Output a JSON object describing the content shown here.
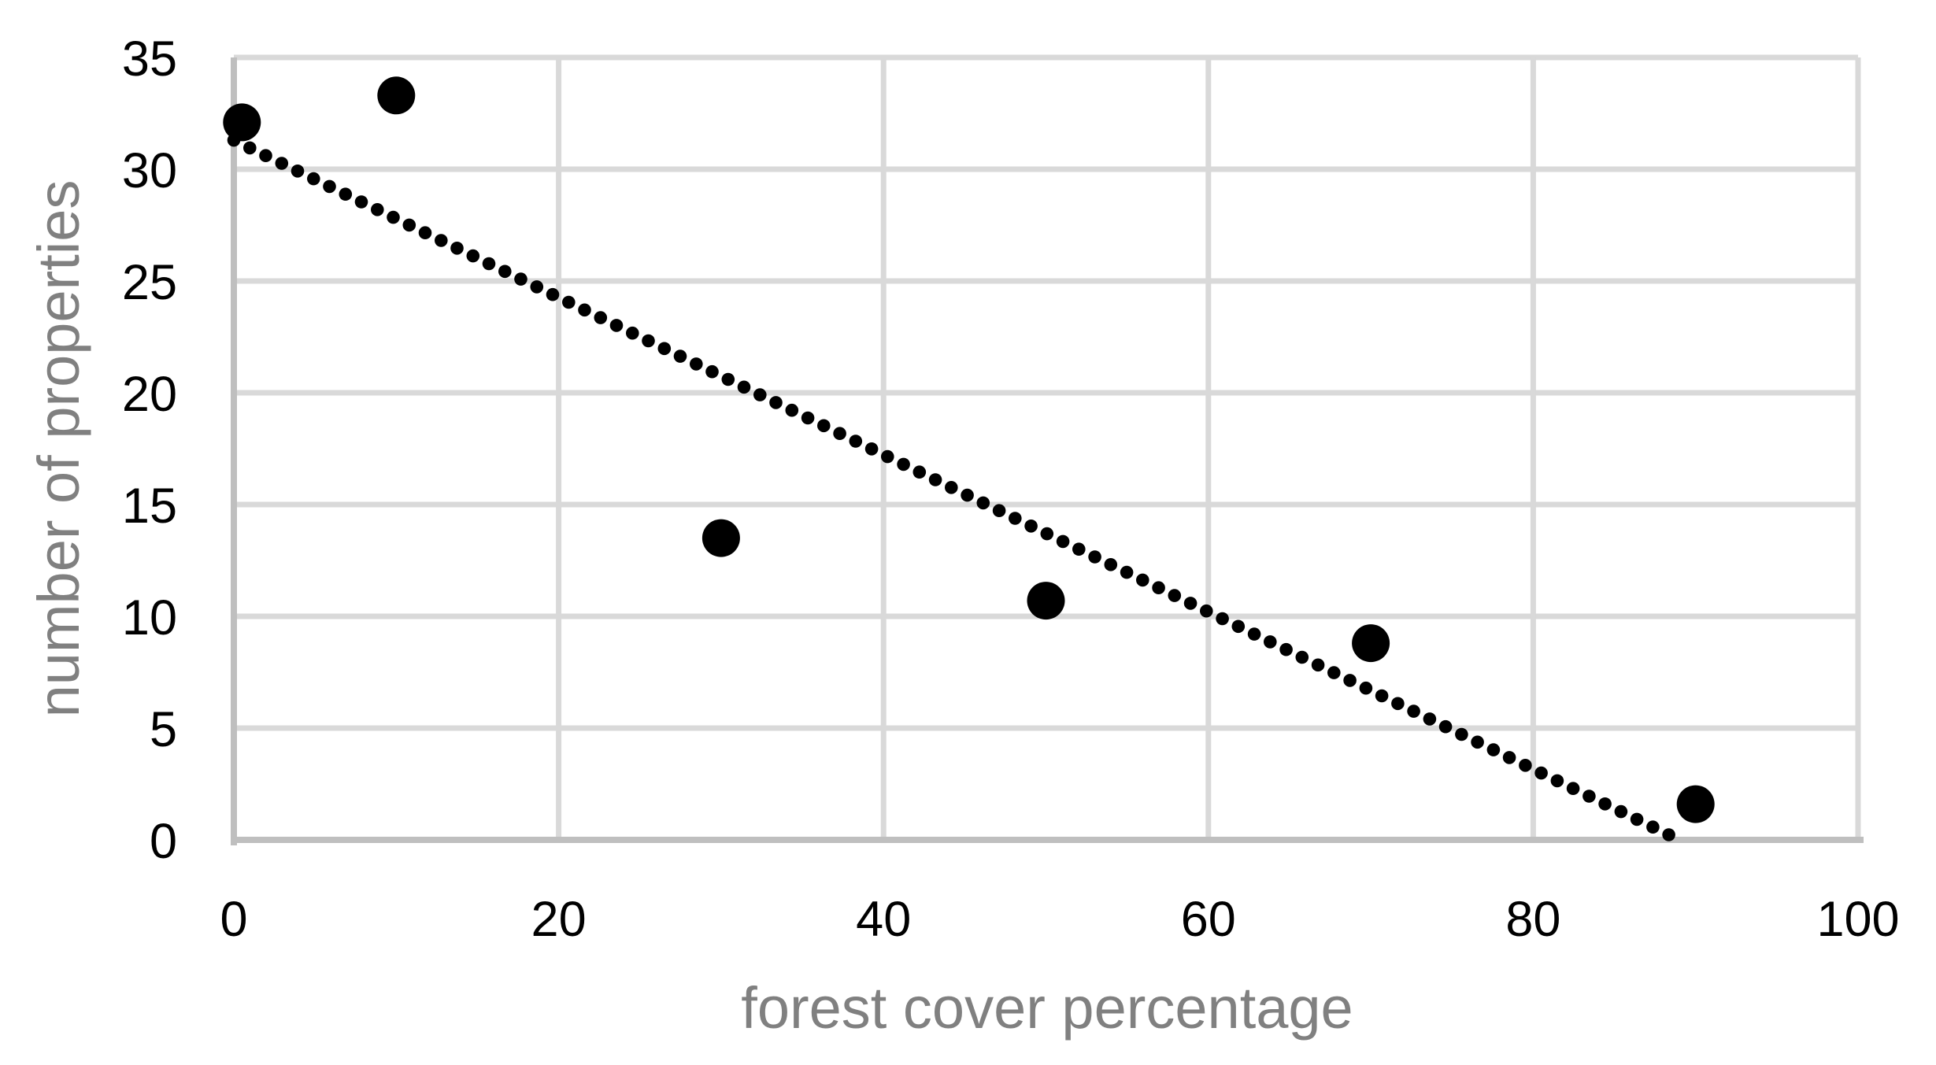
{
  "chart_data": {
    "type": "scatter",
    "title": "",
    "xlabel": "forest cover percentage",
    "ylabel": "number of properties",
    "xlim": [
      0,
      100
    ],
    "ylim": [
      0,
      35
    ],
    "x_ticks": [
      0,
      20,
      40,
      60,
      80,
      100
    ],
    "y_ticks": [
      0,
      5,
      10,
      15,
      20,
      25,
      30,
      35
    ],
    "grid": true,
    "legend": false,
    "series": [
      {
        "name": "number of properties",
        "marker": "circle",
        "color": "#000000",
        "points": [
          [
            0.5,
            32.1
          ],
          [
            10,
            33.3
          ],
          [
            30,
            13.5
          ],
          [
            50,
            10.7
          ],
          [
            70,
            8.8
          ],
          [
            90,
            1.6
          ]
        ]
      }
    ],
    "trendline": {
      "type": "linear",
      "style": "dotted",
      "color": "#000000",
      "start": [
        0,
        31.3
      ],
      "end": [
        89,
        0
      ]
    },
    "colors": {
      "point": "#000000",
      "trendline": "#000000",
      "gridline": "#d9d9d9",
      "axis_line": "#bfbfbf",
      "tick_label": "#000000",
      "axis_title": "#808080",
      "background": "#ffffff"
    }
  }
}
